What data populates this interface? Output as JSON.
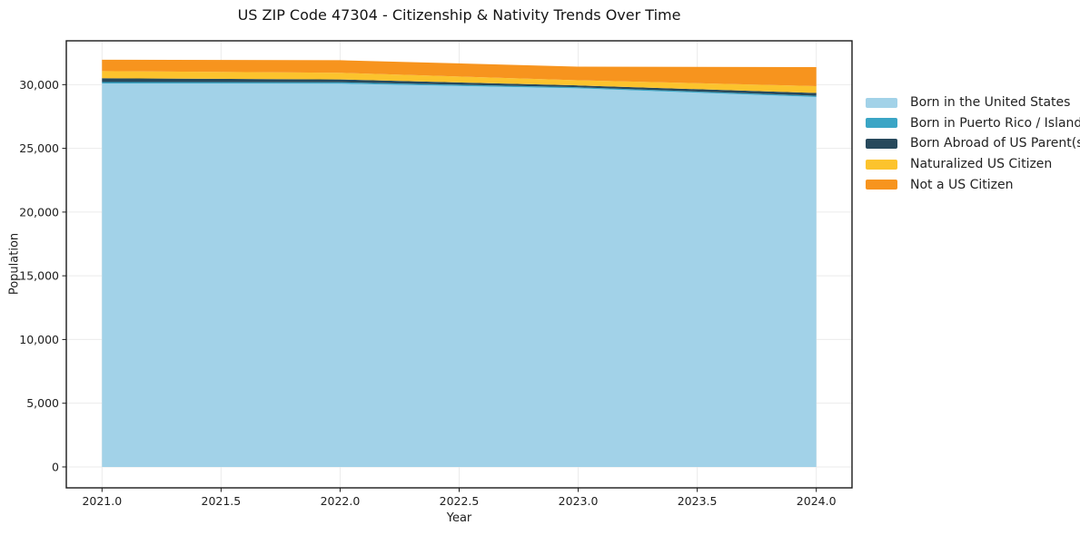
{
  "chart_data": {
    "type": "area",
    "stacked": true,
    "title": "US ZIP Code 47304 - Citizenship & Nativity Trends Over Time",
    "xlabel": "Year",
    "ylabel": "Population",
    "x": [
      2021,
      2022,
      2023,
      2024
    ],
    "series": [
      {
        "name": "Born in the United States",
        "color": "#a2d2e8",
        "values": [
          30090,
          30080,
          29710,
          29025
        ]
      },
      {
        "name": "Born in Puerto Rico / Islands",
        "color": "#3aa5c5",
        "values": [
          110,
          110,
          90,
          105
        ]
      },
      {
        "name": "Born Abroad of US Parent(s)",
        "color": "#27495c",
        "values": [
          300,
          220,
          140,
          215
        ]
      },
      {
        "name": "Naturalized US Citizen",
        "color": "#fcc32d",
        "values": [
          560,
          520,
          405,
          535
        ]
      },
      {
        "name": "Not a US Citizen",
        "color": "#f7941e",
        "values": [
          890,
          990,
          1065,
          1495
        ]
      }
    ],
    "totals": [
      31950,
      31920,
      31410,
      31375
    ],
    "xlim": [
      2020.85,
      2024.15
    ],
    "ylim": [
      -1640,
      33440
    ],
    "xticks": [
      2021.0,
      2021.5,
      2022.0,
      2022.5,
      2023.0,
      2023.5,
      2024.0
    ],
    "xtick_labels": [
      "2021.0",
      "2021.5",
      "2022.0",
      "2022.5",
      "2023.0",
      "2023.5",
      "2024.0"
    ],
    "yticks": [
      0,
      5000,
      10000,
      15000,
      20000,
      25000,
      30000
    ],
    "ytick_labels": [
      "0",
      "5,000",
      "10,000",
      "15,000",
      "20,000",
      "25,000",
      "30,000"
    ],
    "grid": true,
    "grid_color": "#ebebeb",
    "spine_color": "#1a1a1a",
    "legend_position": "right-outside"
  }
}
